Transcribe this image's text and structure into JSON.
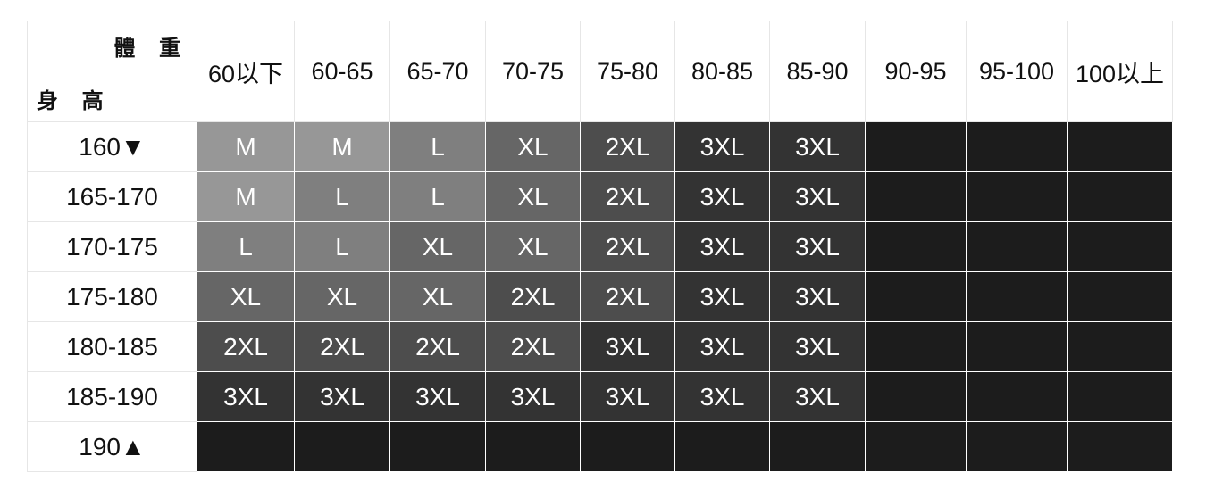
{
  "corner": {
    "weight_label": "體 重",
    "height_label": "身 高"
  },
  "weights": [
    "60以下",
    "60-65",
    "65-70",
    "70-75",
    "75-80",
    "80-85",
    "85-90",
    "90-95",
    "95-100",
    "100以上"
  ],
  "rows": [
    {
      "height": "160▼",
      "sizes": [
        "M",
        "M",
        "L",
        "XL",
        "2XL",
        "3XL",
        "3XL",
        "",
        "",
        ""
      ]
    },
    {
      "height": "165-170",
      "sizes": [
        "M",
        "L",
        "L",
        "XL",
        "2XL",
        "3XL",
        "3XL",
        "",
        "",
        ""
      ]
    },
    {
      "height": "170-175",
      "sizes": [
        "L",
        "L",
        "XL",
        "XL",
        "2XL",
        "3XL",
        "3XL",
        "",
        "",
        ""
      ]
    },
    {
      "height": "175-180",
      "sizes": [
        "XL",
        "XL",
        "XL",
        "2XL",
        "2XL",
        "3XL",
        "3XL",
        "",
        "",
        ""
      ]
    },
    {
      "height": "180-185",
      "sizes": [
        "2XL",
        "2XL",
        "2XL",
        "2XL",
        "3XL",
        "3XL",
        "3XL",
        "",
        "",
        ""
      ]
    },
    {
      "height": "185-190",
      "sizes": [
        "3XL",
        "3XL",
        "3XL",
        "3XL",
        "3XL",
        "3XL",
        "3XL",
        "",
        "",
        ""
      ]
    },
    {
      "height": "190▲",
      "sizes": [
        "",
        "",
        "",
        "",
        "",
        "",
        "",
        "",
        "",
        ""
      ]
    }
  ],
  "size_colors": {
    "M": "#979797",
    "L": "#7f7f7f",
    "XL": "#666666",
    "2XL": "#4d4d4d",
    "3XL": "#333333",
    "empty": "#1c1c1c"
  }
}
